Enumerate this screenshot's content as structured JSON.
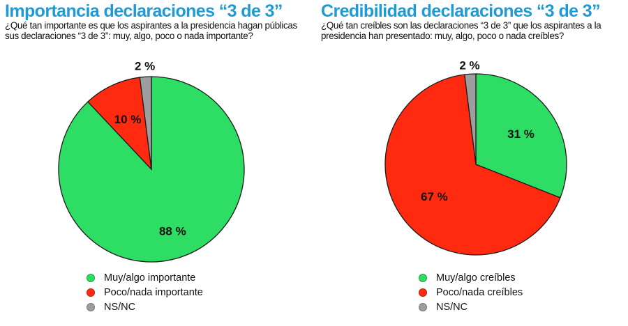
{
  "chart_data": [
    {
      "type": "pie",
      "title": "Importancia declaraciones “3 de 3”",
      "subtitle": "¿Qué tan importante es que los aspirantes a la presidencia hagan públicas sus declaraciones “3 de 3”: muy, algo, poco o nada importante?",
      "slices": [
        {
          "label": "Muy/algo importante",
          "value": 88,
          "value_label": "88 %",
          "color": "#2ddd64"
        },
        {
          "label": "Poco/nada importante",
          "value": 10,
          "value_label": "10 %",
          "color": "#ff2a10"
        },
        {
          "label": "NS/NC",
          "value": 2,
          "value_label": "2 %",
          "color": "#9e9e9e"
        }
      ],
      "legend_position": "bottom"
    },
    {
      "type": "pie",
      "title": "Credibilidad declaraciones “3 de 3”",
      "subtitle": "¿Qué tan creíbles son las declaraciones “3 de 3” que los aspirantes a la presidencia han presentado: muy, algo, poco o nada creíbles?",
      "slices": [
        {
          "label": "Muy/algo creíbles",
          "value": 31,
          "value_label": "31 %",
          "color": "#2ddd64"
        },
        {
          "label": "Poco/nada creíbles",
          "value": 67,
          "value_label": "67 %",
          "color": "#ff2a10"
        },
        {
          "label": "NS/NC",
          "value": 2,
          "value_label": "2 %",
          "color": "#9e9e9e"
        }
      ],
      "legend_position": "bottom"
    }
  ]
}
